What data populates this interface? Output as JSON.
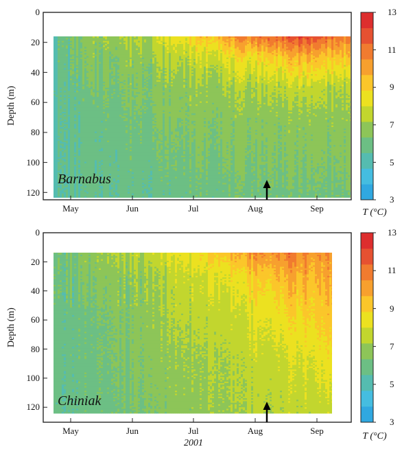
{
  "colors": {
    "levels": [
      "#30a8e0",
      "#45bde0",
      "#55bcb0",
      "#6cbf84",
      "#8dc558",
      "#c2d62e",
      "#ece120",
      "#fbc62a",
      "#f7a02e",
      "#f17b2f",
      "#e65131",
      "#dd2e2e"
    ]
  },
  "year_label": "2001",
  "chart_data": [
    {
      "type": "heatmap",
      "site_label": "Barnabus",
      "ylabel": "Depth (m)",
      "x_ticks": [
        "May",
        "Jun",
        "Jul",
        "Aug",
        "Sep"
      ],
      "y_ticks": [
        "0",
        "20",
        "40",
        "60",
        "80",
        "100",
        "120"
      ],
      "ylim": [
        0,
        125
      ],
      "y_reversed": true,
      "data_depth_range": [
        16,
        124
      ],
      "colorbar": {
        "title": "T (°C)",
        "min": 3,
        "max": 13,
        "step": 0.833,
        "ticks": [
          "3",
          "5",
          "7",
          "9",
          "11",
          "13"
        ]
      },
      "arrow_month": "Aug",
      "profile": [
        {
          "time": "late Apr",
          "d16": 5.6,
          "d30": 5.6,
          "d50": 5.5,
          "d70": 5.4,
          "d100": 5.4,
          "d124": 5.3
        },
        {
          "time": "mid May",
          "d16": 7.0,
          "d30": 6.6,
          "d50": 6.3,
          "d70": 6.0,
          "d100": 5.8,
          "d124": 5.7
        },
        {
          "time": "late May",
          "d16": 7.6,
          "d30": 7.0,
          "d50": 6.6,
          "d70": 6.4,
          "d100": 6.0,
          "d124": 5.8
        },
        {
          "time": "mid Jun",
          "d16": 9.2,
          "d30": 7.8,
          "d50": 6.9,
          "d70": 6.6,
          "d100": 6.3,
          "d124": 5.9
        },
        {
          "time": "mid Jul",
          "d16": 11.0,
          "d30": 8.6,
          "d50": 7.2,
          "d70": 6.7,
          "d100": 6.4,
          "d124": 6.0
        },
        {
          "time": "mid Aug",
          "d16": 12.0,
          "d30": 9.6,
          "d50": 7.6,
          "d70": 6.8,
          "d100": 6.4,
          "d124": 6.0
        },
        {
          "time": "late Sep",
          "d16": 10.6,
          "d30": 9.0,
          "d50": 7.2,
          "d70": 6.8,
          "d100": 6.4,
          "d124": 6.1
        }
      ]
    },
    {
      "type": "heatmap",
      "site_label": "Chiniak",
      "ylabel": "Depth (m)",
      "x_ticks": [
        "May",
        "Jun",
        "Jul",
        "Aug",
        "Sep"
      ],
      "y_ticks": [
        "0",
        "20",
        "40",
        "60",
        "80",
        "100",
        "120"
      ],
      "ylim": [
        0,
        125
      ],
      "y_reversed": true,
      "data_depth_range": [
        12,
        124
      ],
      "colorbar": {
        "title": "T (°C)",
        "min": 3,
        "max": 13,
        "step": 0.833,
        "ticks": [
          "3",
          "5",
          "7",
          "9",
          "11",
          "13"
        ]
      },
      "arrow_month": "Aug",
      "profile": [
        {
          "time": "late Apr",
          "d12": 5.9,
          "d30": 5.9,
          "d60": 5.8,
          "d90": 5.8,
          "d124": 5.7
        },
        {
          "time": "mid May",
          "d12": 6.8,
          "d30": 6.4,
          "d60": 6.1,
          "d90": 6.0,
          "d124": 5.9
        },
        {
          "time": "late May",
          "d12": 7.6,
          "d30": 7.0,
          "d60": 6.8,
          "d90": 6.6,
          "d124": 6.4
        },
        {
          "time": "mid Jun",
          "d12": 8.6,
          "d30": 7.8,
          "d60": 7.4,
          "d90": 7.0,
          "d124": 6.8
        },
        {
          "time": "mid Jul",
          "d12": 10.2,
          "d30": 8.6,
          "d60": 7.8,
          "d90": 7.4,
          "d124": 7.2
        },
        {
          "time": "mid Aug",
          "d12": 11.0,
          "d30": 9.8,
          "d60": 8.6,
          "d90": 7.8,
          "d124": 7.5
        },
        {
          "time": "mid Sep",
          "d12": 10.2,
          "d30": 9.8,
          "d60": 9.2,
          "d90": 8.4,
          "d124": 7.6
        }
      ]
    }
  ]
}
